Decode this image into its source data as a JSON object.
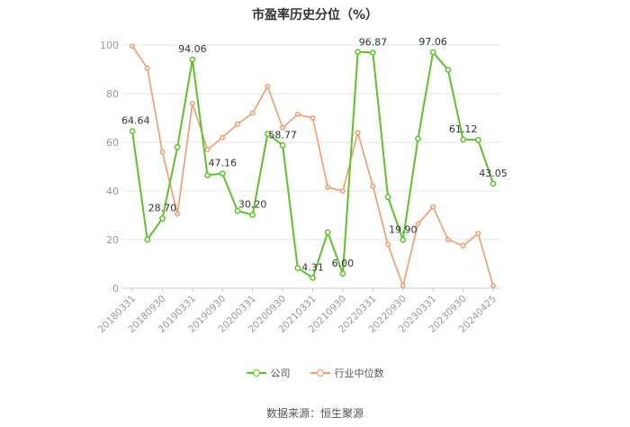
{
  "title": "市盈率历史分位（%）",
  "source": "数据来源：恒生聚源",
  "colors": {
    "company": "#5ec22a",
    "industry": "#f59a6e",
    "grid": "#e6e6e6",
    "axis": "#999999"
  },
  "chart_data": {
    "type": "line",
    "title": "市盈率历史分位（%）",
    "ylim": [
      0,
      100
    ],
    "yticks": [
      0,
      20,
      40,
      60,
      80,
      100
    ],
    "grid": true,
    "legend_position": "bottom",
    "x": [
      "20180331",
      "20180630",
      "20180930",
      "20181231",
      "20190331",
      "20190630",
      "20190930",
      "20191231",
      "20200331",
      "20200630",
      "20200930",
      "20201231",
      "20210331",
      "20210630",
      "20210930",
      "20211231",
      "20220331",
      "20220630",
      "20220930",
      "20221231",
      "20230331",
      "20230630",
      "20230930",
      "20231231",
      "20240425"
    ],
    "xtick_labels": [
      "20180331",
      "20180930",
      "20190331",
      "20190930",
      "20200331",
      "20200930",
      "20210331",
      "20210930",
      "20220331",
      "20220930",
      "20230331",
      "20230930",
      "20240425"
    ],
    "series": [
      {
        "name": "公司",
        "values": [
          64.64,
          20.0,
          28.7,
          58.0,
          94.06,
          46.5,
          47.16,
          31.8,
          30.2,
          63.5,
          58.77,
          8.3,
          4.31,
          23.0,
          6.0,
          97.2,
          96.87,
          37.5,
          19.9,
          61.5,
          97.06,
          89.8,
          61.12,
          61.0,
          43.05
        ],
        "data_labels": {
          "0": "64.64",
          "2": "28.70",
          "4": "94.06",
          "6": "47.16",
          "8": "30.20",
          "10": "58.77",
          "12": "4.31",
          "14": "6.00",
          "16": "96.87",
          "18": "19.90",
          "20": "97.06",
          "22": "61.12",
          "24": "43.05"
        }
      },
      {
        "name": "行业中位数",
        "values": [
          99.5,
          90.5,
          56.0,
          30.5,
          76.0,
          57.0,
          62.0,
          67.5,
          72.0,
          83.0,
          66.0,
          71.5,
          70.0,
          41.5,
          40.0,
          64.0,
          42.0,
          18.0,
          1.0,
          26.5,
          33.5,
          20.0,
          17.5,
          22.5,
          1.0
        ]
      }
    ]
  }
}
